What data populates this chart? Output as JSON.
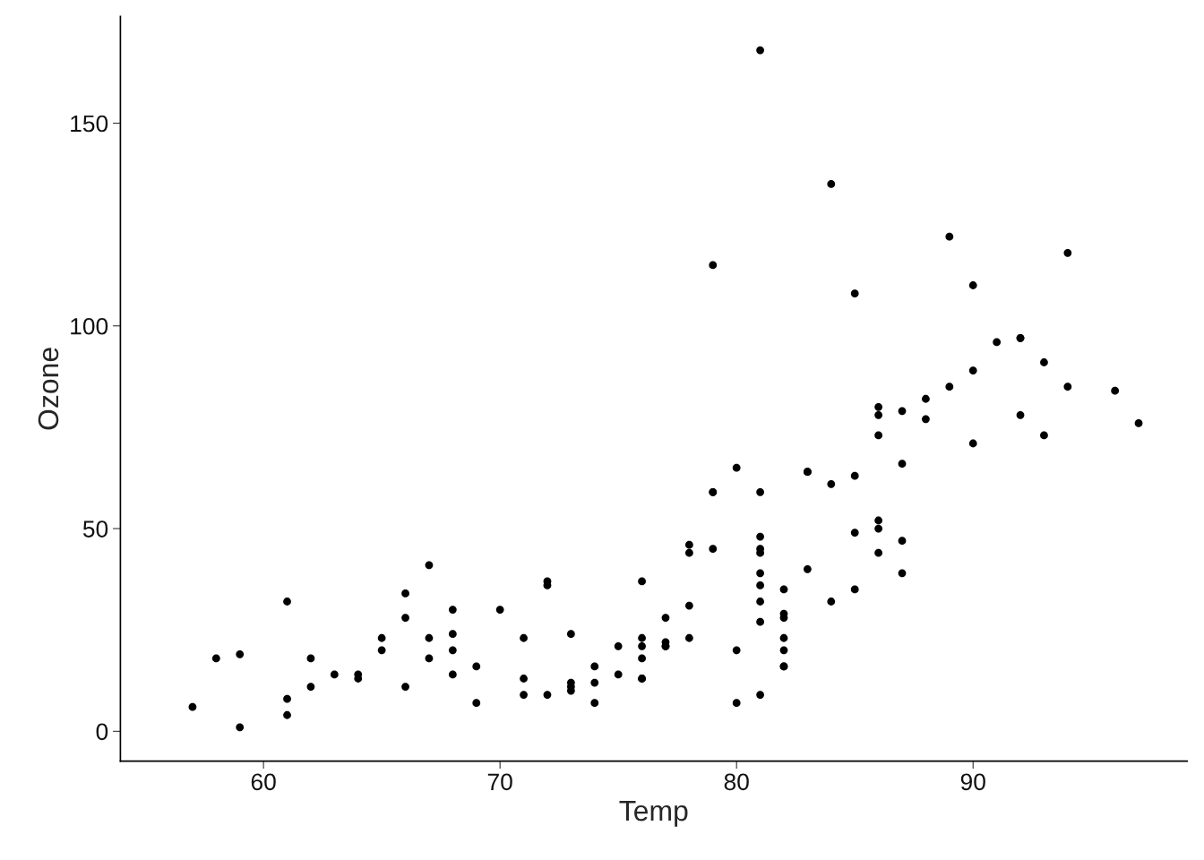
{
  "chart_data": {
    "type": "scatter",
    "xlabel": "Temp",
    "ylabel": "Ozone",
    "x": [
      67,
      72,
      74,
      62,
      66,
      65,
      59,
      61,
      74,
      69,
      66,
      68,
      58,
      64,
      66,
      57,
      68,
      62,
      59,
      73,
      61,
      61,
      67,
      81,
      79,
      76,
      82,
      90,
      87,
      82,
      77,
      72,
      65,
      73,
      76,
      84,
      85,
      81,
      83,
      83,
      88,
      92,
      92,
      89,
      73,
      81,
      80,
      81,
      82,
      84,
      87,
      85,
      74,
      86,
      85,
      82,
      86,
      88,
      86,
      83,
      81,
      81,
      81,
      82,
      86,
      85,
      87,
      89,
      90,
      90,
      86,
      82,
      80,
      79,
      77,
      79,
      76,
      78,
      78,
      77,
      72,
      79,
      81,
      86,
      97,
      94,
      96,
      94,
      91,
      92,
      93,
      93,
      87,
      84,
      80,
      78,
      75,
      73,
      81,
      76,
      77,
      71,
      71,
      78,
      67,
      76,
      68,
      82,
      64,
      71,
      81,
      69,
      63,
      70,
      75,
      76,
      68
    ],
    "values": [
      41,
      36,
      12,
      18,
      28,
      23,
      19,
      8,
      7,
      16,
      11,
      14,
      18,
      14,
      34,
      6,
      30,
      11,
      1,
      11,
      4,
      32,
      23,
      45,
      115,
      37,
      29,
      71,
      39,
      23,
      21,
      37,
      20,
      12,
      13,
      135,
      49,
      32,
      64,
      40,
      77,
      97,
      97,
      85,
      10,
      27,
      7,
      48,
      35,
      61,
      79,
      63,
      16,
      80,
      108,
      20,
      52,
      82,
      50,
      64,
      59,
      39,
      9,
      16,
      78,
      35,
      66,
      122,
      89,
      110,
      44,
      28,
      65,
      59,
      22,
      59,
      23,
      31,
      44,
      21,
      9,
      45,
      168,
      73,
      76,
      118,
      84,
      85,
      96,
      78,
      73,
      91,
      47,
      32,
      20,
      23,
      21,
      24,
      44,
      21,
      28,
      9,
      13,
      46,
      18,
      13,
      24,
      16,
      13,
      23,
      36,
      7,
      14,
      30,
      14,
      18,
      20
    ],
    "color": "#000000",
    "marker": "circle",
    "grid": false,
    "tick_labels": true,
    "xlim": [
      53.95,
      99.05
    ],
    "ylim": [
      -7.35,
      176.35
    ],
    "xticks": [
      60,
      70,
      80,
      90
    ],
    "yticks": [
      0,
      50,
      100,
      150
    ]
  }
}
